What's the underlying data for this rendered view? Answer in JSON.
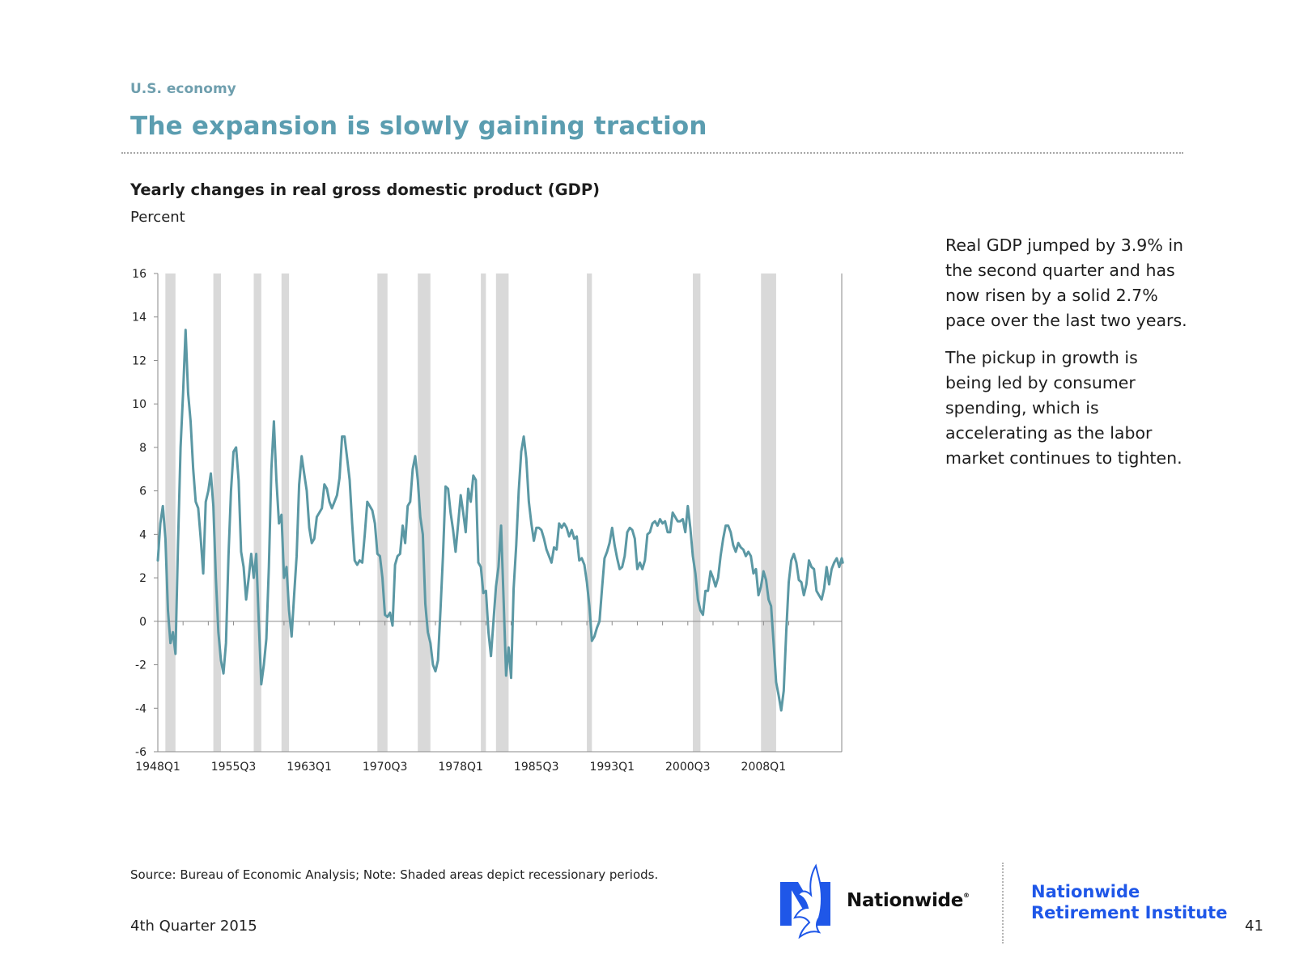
{
  "header": {
    "section": "U.S. economy",
    "title": "The expansion is slowly gaining traction"
  },
  "chart_header": {
    "title": "Yearly changes in real gross domestic product (GDP)",
    "unit": "Percent"
  },
  "commentary": {
    "paragraph1": "Real GDP jumped by 3.9% in the second quarter and has now risen by a solid 2.7% pace over the last two years.",
    "paragraph2": "The pickup in growth is being led by consumer spending, which is accelerating as the labor market continues to tighten."
  },
  "footer": {
    "source": "Source: Bureau of Economic Analysis; Note:  Shaded areas depict recessionary periods.",
    "date": "4th Quarter 2015",
    "brand": "Nationwide",
    "brand_mark": "®",
    "institute_line1": "Nationwide",
    "institute_line2": "Retirement Institute",
    "page": "41"
  },
  "colors": {
    "line": "#5b98a4",
    "recession": "#d9d9d9",
    "title": "#5b9db0",
    "institute": "#1f57e8",
    "logo": "#1f57e8"
  },
  "icons": {
    "logo": "eagle-logo-icon"
  },
  "chart_data": {
    "type": "line",
    "title": "Yearly changes in real gross domestic product (GDP)",
    "ylabel": "Percent",
    "xlabel": "",
    "ylim": [
      -6,
      16
    ],
    "yticks": [
      -6,
      -4,
      -2,
      0,
      2,
      4,
      6,
      8,
      10,
      12,
      14,
      16
    ],
    "xlim": [
      1948.0,
      2015.75
    ],
    "xticks": [
      {
        "label": "1948Q1",
        "x": 1948.0
      },
      {
        "label": "1955Q3",
        "x": 1955.5
      },
      {
        "label": "1963Q1",
        "x": 1963.0
      },
      {
        "label": "1970Q3",
        "x": 1970.5
      },
      {
        "label": "1978Q1",
        "x": 1978.0
      },
      {
        "label": "1985Q3",
        "x": 1985.5
      },
      {
        "label": "1993Q1",
        "x": 1993.0
      },
      {
        "label": "2000Q3",
        "x": 2000.5
      },
      {
        "label": "2008Q1",
        "x": 2008.0
      }
    ],
    "grid": false,
    "legend": "none",
    "recessions": [
      [
        1948.75,
        1949.75
      ],
      [
        1953.5,
        1954.25
      ],
      [
        1957.5,
        1958.25
      ],
      [
        1960.25,
        1961.0
      ],
      [
        1969.75,
        1970.75
      ],
      [
        1973.75,
        1975.0
      ],
      [
        1980.0,
        1980.5
      ],
      [
        1981.5,
        1982.75
      ],
      [
        1990.5,
        1991.0
      ],
      [
        2001.0,
        2001.75
      ],
      [
        2007.75,
        2009.25
      ]
    ],
    "series": [
      {
        "name": "",
        "points": [
          [
            1948.0,
            2.8
          ],
          [
            1948.25,
            4.5
          ],
          [
            1948.5,
            5.3
          ],
          [
            1948.75,
            3.8
          ],
          [
            1949.0,
            0.5
          ],
          [
            1949.25,
            -1.0
          ],
          [
            1949.5,
            -0.5
          ],
          [
            1949.75,
            -1.5
          ],
          [
            1950.0,
            3.5
          ],
          [
            1950.25,
            8.0
          ],
          [
            1950.5,
            10.5
          ],
          [
            1950.75,
            13.4
          ],
          [
            1951.0,
            10.5
          ],
          [
            1951.25,
            9.2
          ],
          [
            1951.5,
            7.0
          ],
          [
            1951.75,
            5.5
          ],
          [
            1952.0,
            5.2
          ],
          [
            1952.25,
            3.8
          ],
          [
            1952.5,
            2.2
          ],
          [
            1952.75,
            5.5
          ],
          [
            1953.0,
            6.0
          ],
          [
            1953.25,
            6.8
          ],
          [
            1953.5,
            5.3
          ],
          [
            1953.75,
            2.0
          ],
          [
            1954.0,
            -0.5
          ],
          [
            1954.25,
            -1.8
          ],
          [
            1954.5,
            -2.4
          ],
          [
            1954.75,
            -1.0
          ],
          [
            1955.0,
            3.0
          ],
          [
            1955.25,
            6.0
          ],
          [
            1955.5,
            7.8
          ],
          [
            1955.75,
            8.0
          ],
          [
            1956.0,
            6.5
          ],
          [
            1956.25,
            3.2
          ],
          [
            1956.5,
            2.5
          ],
          [
            1956.75,
            1.0
          ],
          [
            1957.0,
            2.0
          ],
          [
            1957.25,
            3.1
          ],
          [
            1957.5,
            2.0
          ],
          [
            1957.75,
            3.1
          ],
          [
            1958.0,
            0.0
          ],
          [
            1958.25,
            -2.9
          ],
          [
            1958.5,
            -2.0
          ],
          [
            1958.75,
            -0.8
          ],
          [
            1959.0,
            2.5
          ],
          [
            1959.25,
            7.0
          ],
          [
            1959.5,
            9.2
          ],
          [
            1959.75,
            6.5
          ],
          [
            1960.0,
            4.5
          ],
          [
            1960.25,
            4.9
          ],
          [
            1960.5,
            2.0
          ],
          [
            1960.75,
            2.5
          ],
          [
            1961.0,
            0.5
          ],
          [
            1961.25,
            -0.7
          ],
          [
            1961.5,
            1.2
          ],
          [
            1961.75,
            3.0
          ],
          [
            1962.0,
            6.3
          ],
          [
            1962.25,
            7.6
          ],
          [
            1962.5,
            6.8
          ],
          [
            1962.75,
            6.0
          ],
          [
            1963.0,
            4.3
          ],
          [
            1963.25,
            3.6
          ],
          [
            1963.5,
            3.8
          ],
          [
            1963.75,
            4.8
          ],
          [
            1964.0,
            5.0
          ],
          [
            1964.25,
            5.2
          ],
          [
            1964.5,
            6.3
          ],
          [
            1964.75,
            6.1
          ],
          [
            1965.0,
            5.5
          ],
          [
            1965.25,
            5.2
          ],
          [
            1965.5,
            5.5
          ],
          [
            1965.75,
            5.8
          ],
          [
            1966.0,
            6.6
          ],
          [
            1966.25,
            8.5
          ],
          [
            1966.5,
            8.5
          ],
          [
            1966.75,
            7.5
          ],
          [
            1967.0,
            6.5
          ],
          [
            1967.25,
            4.5
          ],
          [
            1967.5,
            2.8
          ],
          [
            1967.75,
            2.6
          ],
          [
            1968.0,
            2.8
          ],
          [
            1968.25,
            2.7
          ],
          [
            1968.5,
            4.0
          ],
          [
            1968.75,
            5.5
          ],
          [
            1969.0,
            5.3
          ],
          [
            1969.25,
            5.1
          ],
          [
            1969.5,
            4.5
          ],
          [
            1969.75,
            3.1
          ],
          [
            1970.0,
            3.0
          ],
          [
            1970.25,
            2.0
          ],
          [
            1970.5,
            0.3
          ],
          [
            1970.75,
            0.2
          ],
          [
            1971.0,
            0.4
          ],
          [
            1971.25,
            -0.2
          ],
          [
            1971.5,
            2.6
          ],
          [
            1971.75,
            3.0
          ],
          [
            1972.0,
            3.1
          ],
          [
            1972.25,
            4.4
          ],
          [
            1972.5,
            3.6
          ],
          [
            1972.75,
            5.3
          ],
          [
            1973.0,
            5.5
          ],
          [
            1973.25,
            7.0
          ],
          [
            1973.5,
            7.6
          ],
          [
            1973.75,
            6.5
          ],
          [
            1974.0,
            4.8
          ],
          [
            1974.25,
            4.0
          ],
          [
            1974.5,
            0.8
          ],
          [
            1974.75,
            -0.5
          ],
          [
            1975.0,
            -1.0
          ],
          [
            1975.25,
            -2.0
          ],
          [
            1975.5,
            -2.3
          ],
          [
            1975.75,
            -1.8
          ],
          [
            1976.0,
            0.5
          ],
          [
            1976.25,
            3.0
          ],
          [
            1976.5,
            6.2
          ],
          [
            1976.75,
            6.1
          ],
          [
            1977.0,
            5.0
          ],
          [
            1977.25,
            4.2
          ],
          [
            1977.5,
            3.2
          ],
          [
            1977.75,
            4.5
          ],
          [
            1978.0,
            5.8
          ],
          [
            1978.25,
            5.0
          ],
          [
            1978.5,
            4.1
          ],
          [
            1978.75,
            6.1
          ],
          [
            1979.0,
            5.5
          ],
          [
            1979.25,
            6.7
          ],
          [
            1979.5,
            6.5
          ],
          [
            1979.75,
            2.7
          ],
          [
            1980.0,
            2.5
          ],
          [
            1980.25,
            1.3
          ],
          [
            1980.5,
            1.4
          ],
          [
            1980.75,
            -0.5
          ],
          [
            1981.0,
            -1.6
          ],
          [
            1981.25,
            0.0
          ],
          [
            1981.5,
            1.6
          ],
          [
            1981.75,
            2.5
          ],
          [
            1982.0,
            4.4
          ],
          [
            1982.25,
            1.0
          ],
          [
            1982.5,
            -2.5
          ],
          [
            1982.75,
            -1.2
          ],
          [
            1983.0,
            -2.6
          ],
          [
            1983.25,
            1.5
          ],
          [
            1983.5,
            3.5
          ],
          [
            1983.75,
            6.0
          ],
          [
            1984.0,
            7.8
          ],
          [
            1984.25,
            8.5
          ],
          [
            1984.5,
            7.5
          ],
          [
            1984.75,
            5.5
          ],
          [
            1985.0,
            4.5
          ],
          [
            1985.25,
            3.7
          ],
          [
            1985.5,
            4.3
          ],
          [
            1985.75,
            4.3
          ],
          [
            1986.0,
            4.2
          ],
          [
            1986.25,
            3.8
          ],
          [
            1986.5,
            3.3
          ],
          [
            1986.75,
            3.0
          ],
          [
            1987.0,
            2.7
          ],
          [
            1987.25,
            3.4
          ],
          [
            1987.5,
            3.3
          ],
          [
            1987.75,
            4.5
          ],
          [
            1988.0,
            4.3
          ],
          [
            1988.25,
            4.5
          ],
          [
            1988.5,
            4.3
          ],
          [
            1988.75,
            3.9
          ],
          [
            1989.0,
            4.2
          ],
          [
            1989.25,
            3.8
          ],
          [
            1989.5,
            3.9
          ],
          [
            1989.75,
            2.8
          ],
          [
            1990.0,
            2.9
          ],
          [
            1990.25,
            2.6
          ],
          [
            1990.5,
            1.8
          ],
          [
            1990.75,
            0.7
          ],
          [
            1991.0,
            -0.9
          ],
          [
            1991.25,
            -0.7
          ],
          [
            1991.5,
            -0.3
          ],
          [
            1991.75,
            0.0
          ],
          [
            1992.0,
            1.5
          ],
          [
            1992.25,
            2.9
          ],
          [
            1992.5,
            3.2
          ],
          [
            1992.75,
            3.6
          ],
          [
            1993.0,
            4.3
          ],
          [
            1993.25,
            3.5
          ],
          [
            1993.5,
            2.9
          ],
          [
            1993.75,
            2.4
          ],
          [
            1994.0,
            2.5
          ],
          [
            1994.25,
            3.0
          ],
          [
            1994.5,
            4.1
          ],
          [
            1994.75,
            4.3
          ],
          [
            1995.0,
            4.2
          ],
          [
            1995.25,
            3.8
          ],
          [
            1995.5,
            2.4
          ],
          [
            1995.75,
            2.7
          ],
          [
            1996.0,
            2.4
          ],
          [
            1996.25,
            2.8
          ],
          [
            1996.5,
            4.0
          ],
          [
            1996.75,
            4.1
          ],
          [
            1997.0,
            4.5
          ],
          [
            1997.25,
            4.6
          ],
          [
            1997.5,
            4.4
          ],
          [
            1997.75,
            4.7
          ],
          [
            1998.0,
            4.5
          ],
          [
            1998.25,
            4.6
          ],
          [
            1998.5,
            4.1
          ],
          [
            1998.75,
            4.1
          ],
          [
            1999.0,
            5.0
          ],
          [
            1999.25,
            4.8
          ],
          [
            1999.5,
            4.6
          ],
          [
            1999.75,
            4.6
          ],
          [
            2000.0,
            4.7
          ],
          [
            2000.25,
            4.1
          ],
          [
            2000.5,
            5.3
          ],
          [
            2000.75,
            4.3
          ],
          [
            2001.0,
            3.0
          ],
          [
            2001.25,
            2.2
          ],
          [
            2001.5,
            1.0
          ],
          [
            2001.75,
            0.5
          ],
          [
            2002.0,
            0.3
          ],
          [
            2002.25,
            1.4
          ],
          [
            2002.5,
            1.4
          ],
          [
            2002.75,
            2.3
          ],
          [
            2003.0,
            2.0
          ],
          [
            2003.25,
            1.6
          ],
          [
            2003.5,
            2.0
          ],
          [
            2003.75,
            3.0
          ],
          [
            2004.0,
            3.8
          ],
          [
            2004.25,
            4.4
          ],
          [
            2004.5,
            4.4
          ],
          [
            2004.75,
            4.1
          ],
          [
            2005.0,
            3.5
          ],
          [
            2005.25,
            3.2
          ],
          [
            2005.5,
            3.6
          ],
          [
            2005.75,
            3.4
          ],
          [
            2006.0,
            3.3
          ],
          [
            2006.25,
            3.0
          ],
          [
            2006.5,
            3.2
          ],
          [
            2006.75,
            3.0
          ],
          [
            2007.0,
            2.2
          ],
          [
            2007.25,
            2.4
          ],
          [
            2007.5,
            1.2
          ],
          [
            2007.75,
            1.6
          ],
          [
            2008.0,
            2.3
          ],
          [
            2008.25,
            1.9
          ],
          [
            2008.5,
            1.0
          ],
          [
            2008.75,
            0.7
          ],
          [
            2009.0,
            -1.0
          ],
          [
            2009.25,
            -2.8
          ],
          [
            2009.5,
            -3.4
          ],
          [
            2009.75,
            -4.1
          ],
          [
            2010.0,
            -3.2
          ],
          [
            2010.25,
            -0.5
          ],
          [
            2010.5,
            1.8
          ],
          [
            2010.75,
            2.8
          ],
          [
            2011.0,
            3.1
          ],
          [
            2011.25,
            2.7
          ],
          [
            2011.5,
            1.9
          ],
          [
            2011.75,
            1.8
          ],
          [
            2012.0,
            1.2
          ],
          [
            2012.25,
            1.7
          ],
          [
            2012.5,
            2.8
          ],
          [
            2012.75,
            2.5
          ],
          [
            2013.0,
            2.4
          ],
          [
            2013.25,
            1.4
          ],
          [
            2013.5,
            1.2
          ],
          [
            2013.75,
            1.0
          ],
          [
            2014.0,
            1.5
          ],
          [
            2014.25,
            2.5
          ],
          [
            2014.5,
            1.7
          ],
          [
            2014.75,
            2.4
          ],
          [
            2015.0,
            2.7
          ],
          [
            2015.25,
            2.9
          ],
          [
            2015.5,
            2.5
          ],
          [
            2015.75,
            2.9
          ],
          [
            2015.85,
            2.7
          ]
        ]
      }
    ]
  }
}
